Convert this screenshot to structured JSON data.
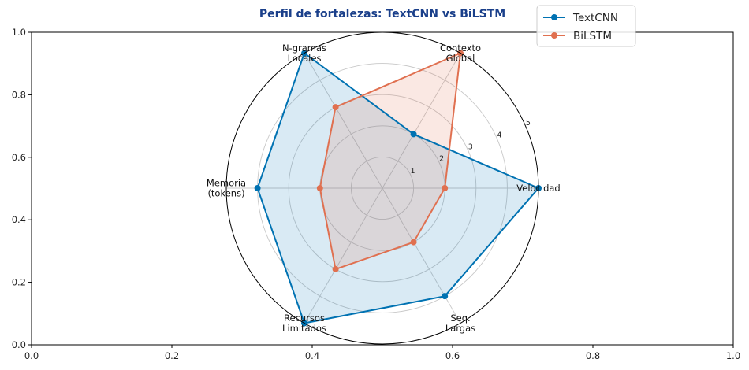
{
  "chart_data": {
    "type": "radar",
    "title": "Perfil de fortalezas: TextCNN vs BiLSTM",
    "categories": [
      "Velocidad",
      "Contexto\nGlobal",
      "N-gramas\nLocales",
      "Memoria\n(tokens)",
      "Recursos\nLimitados",
      "Seq.\nLargas"
    ],
    "r_ticks": [
      1,
      2,
      3,
      4,
      5
    ],
    "r_max": 5,
    "series": [
      {
        "name": "TextCNN",
        "values": [
          5,
          2,
          5,
          4,
          5,
          4
        ],
        "color": "#0072b2"
      },
      {
        "name": "BiLSTM",
        "values": [
          2,
          5,
          3,
          2,
          3,
          2
        ],
        "color": "#e07050"
      }
    ],
    "background_axes": {
      "xlim": [
        0,
        1
      ],
      "ylim": [
        0,
        1
      ],
      "xticks": [
        "0.0",
        "0.2",
        "0.4",
        "0.6",
        "0.8",
        "1.0"
      ],
      "yticks": [
        "0.0",
        "0.2",
        "0.4",
        "0.6",
        "0.8",
        "1.0"
      ]
    },
    "legend_position": "top-right"
  }
}
